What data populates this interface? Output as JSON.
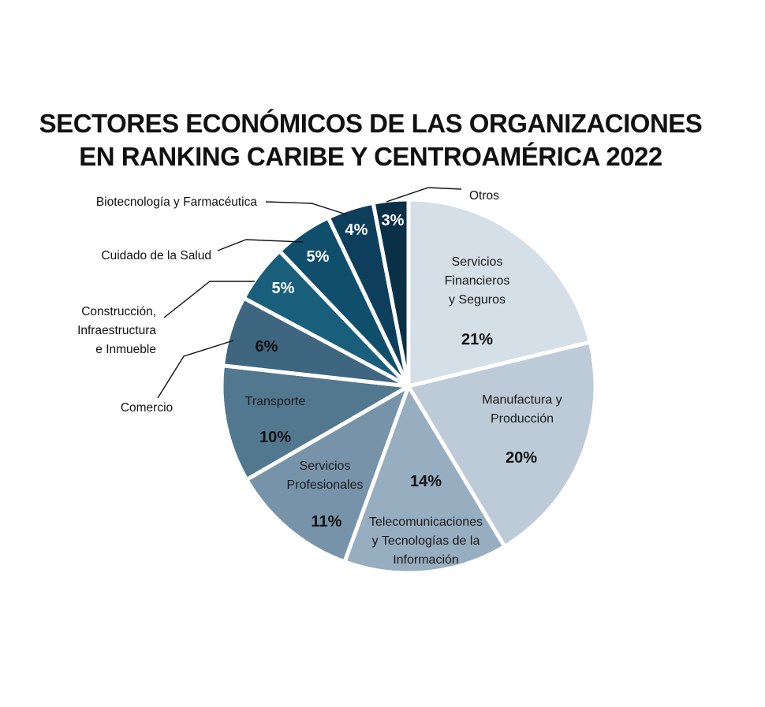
{
  "chart_data": {
    "type": "pie",
    "title_lines": [
      "SECTORES ECONÓMICOS DE LAS ORGANIZACIONES",
      "EN RANKING CARIBE Y CENTROAMÉRICA 2022"
    ],
    "slices": [
      {
        "key": "servicios-financieros",
        "label_lines": [
          "Servicios",
          "Financieros",
          "y Seguros"
        ],
        "value": 21,
        "value_label": "21%",
        "color": "#d4dfe8"
      },
      {
        "key": "manufactura",
        "label_lines": [
          "Manufactura y",
          "Producción"
        ],
        "value": 20,
        "value_label": "20%",
        "color": "#bccbd7"
      },
      {
        "key": "telecomunicaciones",
        "label_lines": [
          "Telecomunicaciones",
          "y Tecnologías de la",
          "Información"
        ],
        "value": 14,
        "value_label": "14%",
        "color": "#97adc0"
      },
      {
        "key": "servicios-profesionales",
        "label_lines": [
          "Servicios",
          "Profesionales"
        ],
        "value": 11,
        "value_label": "11%",
        "color": "#7793aa"
      },
      {
        "key": "transporte",
        "label_lines": [
          "Transporte"
        ],
        "value": 10,
        "value_label": "10%",
        "color": "#52788f"
      },
      {
        "key": "comercio",
        "label_lines": [
          "Comercio"
        ],
        "value": 6,
        "value_label": "6%",
        "color": "#3f6680"
      },
      {
        "key": "construccion",
        "label_lines": [
          "Construcción,",
          "Infraestructura",
          "e Inmueble"
        ],
        "value": 5,
        "value_label": "5%",
        "color": "#195e7a"
      },
      {
        "key": "cuidado-salud",
        "label_lines": [
          "Cuidado de la Salud"
        ],
        "value": 5,
        "value_label": "5%",
        "color": "#0f4f6c"
      },
      {
        "key": "biotecnologia",
        "label_lines": [
          "Biotecnología y Farmacéutica"
        ],
        "value": 4,
        "value_label": "4%",
        "color": "#0d3f5c"
      },
      {
        "key": "otros",
        "label_lines": [
          "Otros"
        ],
        "value": 3,
        "value_label": "3%",
        "color": "#0a3048"
      }
    ]
  }
}
